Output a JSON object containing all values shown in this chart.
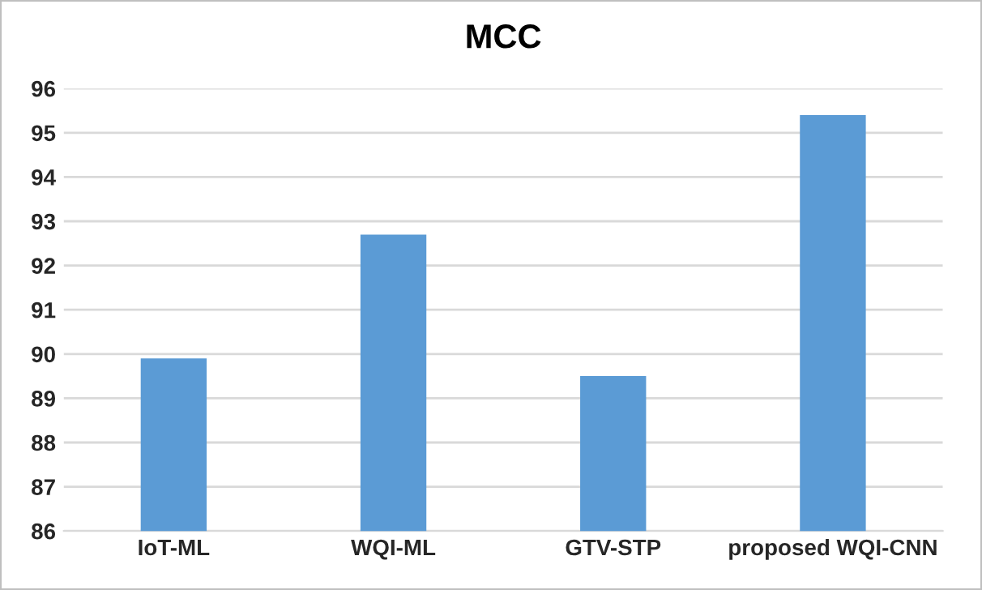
{
  "chart_data": {
    "type": "bar",
    "title": "MCC",
    "categories": [
      "IoT-ML",
      "WQI-ML",
      "GTV-STP",
      "proposed WQI-CNN"
    ],
    "values": [
      89.9,
      92.7,
      89.5,
      95.4
    ],
    "color": "#5b9bd5",
    "ylim": [
      86,
      96
    ],
    "yticks": [
      86,
      87,
      88,
      89,
      90,
      91,
      92,
      93,
      94,
      95,
      96
    ],
    "grid": "y",
    "legend": false
  }
}
